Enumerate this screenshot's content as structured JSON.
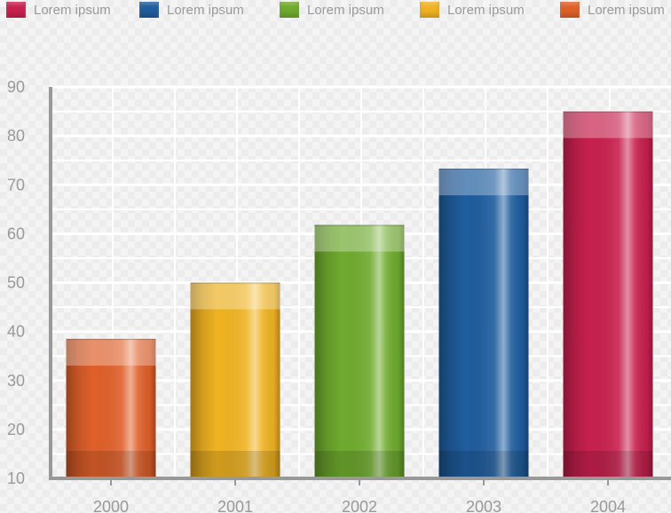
{
  "legend": {
    "items": [
      {
        "label": "Lorem ipsum",
        "color": "#c8204e"
      },
      {
        "label": "Lorem ipsum",
        "color": "#1f5d9e"
      },
      {
        "label": "Lorem ipsum",
        "color": "#6fab2e"
      },
      {
        "label": "Lorem ipsum",
        "color": "#f0b322"
      },
      {
        "label": "Lorem ipsum",
        "color": "#e0602a"
      }
    ]
  },
  "chart_data": {
    "type": "bar",
    "categories": [
      "2000",
      "2001",
      "2002",
      "2003",
      "2004"
    ],
    "values": [
      38.5,
      50,
      61.8,
      73.3,
      85
    ],
    "colors": [
      "#e0602a",
      "#f0b322",
      "#6fab2e",
      "#1f5d9e",
      "#c8204e"
    ],
    "ylim": [
      10,
      90
    ],
    "yticks": [
      "10",
      "20",
      "30",
      "40",
      "50",
      "60",
      "70",
      "80",
      "90"
    ],
    "grid": true,
    "legend_position": "top"
  }
}
